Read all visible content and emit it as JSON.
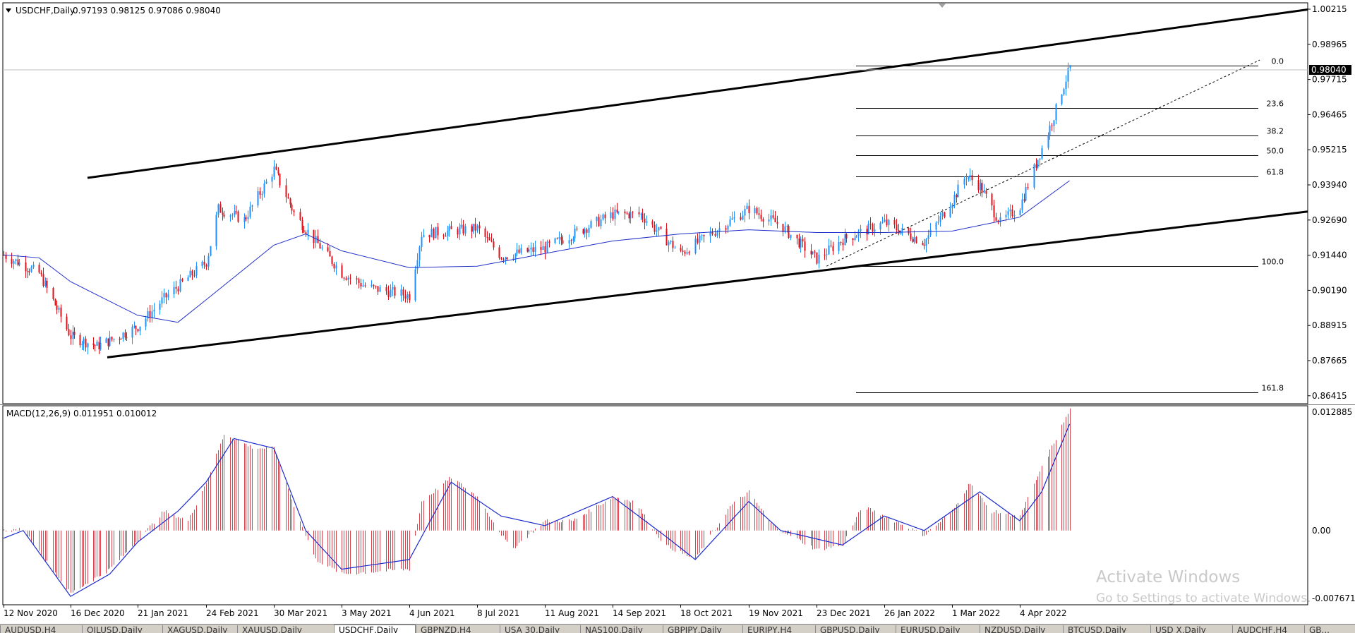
{
  "header": {
    "symbol": "USDCHF,Daily",
    "ohlc": "0.97193 0.98125 0.97086 0.98040"
  },
  "price_axis": {
    "labels": [
      "1.00215",
      "0.98965",
      "0.97715",
      "0.96465",
      "0.95215",
      "0.93940",
      "0.92690",
      "0.91440",
      "0.90190",
      "0.88915",
      "0.87665",
      "0.86415"
    ],
    "current_price": "0.98040"
  },
  "fibonacci": {
    "levels": [
      "0.0",
      "23.6",
      "38.2",
      "50.0",
      "61.8",
      "100.0",
      "161.8"
    ]
  },
  "macd": {
    "title": "MACD(12,26,9) 0.011951 0.010012",
    "axis_labels": [
      "0.012885",
      "0.00",
      "-0.007671"
    ]
  },
  "time_axis": {
    "labels": [
      "12 Nov 2020",
      "16 Dec 2020",
      "21 Jan 2021",
      "24 Feb 2021",
      "30 Mar 2021",
      "3 May 2021",
      "4 Jun 2021",
      "8 Jul 2021",
      "11 Aug 2021",
      "14 Sep 2021",
      "18 Oct 2021",
      "19 Nov 2021",
      "23 Dec 2021",
      "26 Jan 2022",
      "1 Mar 2022",
      "4 Apr 2022"
    ]
  },
  "watermark": {
    "line1": "Activate Windows",
    "line2": "Go to Settings to activate Windows."
  },
  "tabs": [
    "AUDUSD,H4",
    "OILUSD,Daily",
    "XAGUSD,Daily",
    "XAUUSD,Daily",
    "USDCHF,Daily",
    "GBPNZD,H4",
    "USA 30,Daily",
    "NAS100,Daily",
    "GBPJPY,Daily",
    "EURJPY,H4",
    "GBPUSD,Daily",
    "EURUSD,Daily",
    "NZDUSD,Daily",
    "BTCUSD,Daily",
    "USD X,Daily",
    "AUDCHF,H4",
    "GB..."
  ],
  "active_tab": "USDCHF,Daily",
  "colors": {
    "bull": "#1e90ff",
    "bear": "#e0101a",
    "ma": "#2030c8",
    "histogram": "#d8454f",
    "signal": "#1a2ad0",
    "trend": "#000000"
  },
  "chart_data": {
    "type": "candlestick",
    "symbol": "USDCHF",
    "timeframe": "Daily",
    "ylim": [
      0.8605,
      1.0034
    ],
    "close_path": [
      [
        "12 Nov 2020",
        0.9135
      ],
      [
        "30 Nov 2020",
        0.907
      ],
      [
        "16 Dec 2020",
        0.8845
      ],
      [
        "30 Dec 2020",
        0.881
      ],
      [
        "6 Jan 2021",
        0.883
      ],
      [
        "21 Jan 2021",
        0.888
      ],
      [
        "3 Feb 2021",
        0.898
      ],
      [
        "24 Feb 2021",
        0.911
      ],
      [
        "2 Mar 2021",
        0.93
      ],
      [
        "15 Mar 2021",
        0.926
      ],
      [
        "30 Mar 2021",
        0.944
      ],
      [
        "10 Apr 2021",
        0.927
      ],
      [
        "3 May 2021",
        0.907
      ],
      [
        "15 May 2021",
        0.902
      ],
      [
        "4 Jun 2021",
        0.899
      ],
      [
        "10 Jun 2021",
        0.921
      ],
      [
        "8 Jul 2021",
        0.923
      ],
      [
        "20 Jul 2021",
        0.913
      ],
      [
        "11 Aug 2021",
        0.916
      ],
      [
        "14 Sep 2021",
        0.928
      ],
      [
        "28 Sep 2021",
        0.928
      ],
      [
        "18 Oct 2021",
        0.914
      ],
      [
        "19 Nov 2021",
        0.93
      ],
      [
        "5 Dec 2021",
        0.924
      ],
      [
        "23 Dec 2021",
        0.912
      ],
      [
        "5 Jan 2022",
        0.919
      ],
      [
        "26 Jan 2022",
        0.925
      ],
      [
        "15 Feb 2022",
        0.918
      ],
      [
        "1 Mar 2022",
        0.933
      ],
      [
        "8 Mar 2022",
        0.942
      ],
      [
        "15 Mar 2022",
        0.938
      ],
      [
        "25 Mar 2022",
        0.925
      ],
      [
        "4 Apr 2022",
        0.931
      ],
      [
        "12 Apr 2022",
        0.946
      ],
      [
        "20 Apr 2022",
        0.961
      ],
      [
        "25 Apr 2022",
        0.972
      ],
      [
        "29 Apr 2022",
        0.9804
      ]
    ],
    "ma_path": [
      [
        "12 Nov 2020",
        0.9135
      ],
      [
        "30 Nov 2020",
        0.9125
      ],
      [
        "16 Dec 2020",
        0.904
      ],
      [
        "21 Jan 2021",
        0.892
      ],
      [
        "10 Feb 2021",
        0.8895
      ],
      [
        "24 Feb 2021",
        0.8975
      ],
      [
        "30 Mar 2021",
        0.917
      ],
      [
        "15 Apr 2021",
        0.921
      ],
      [
        "3 May 2021",
        0.915
      ],
      [
        "4 Jun 2021",
        0.909
      ],
      [
        "8 Jul 2021",
        0.9095
      ],
      [
        "11 Aug 2021",
        0.914
      ],
      [
        "14 Sep 2021",
        0.9185
      ],
      [
        "18 Oct 2021",
        0.921
      ],
      [
        "19 Nov 2021",
        0.9225
      ],
      [
        "23 Dec 2021",
        0.9215
      ],
      [
        "26 Jan 2022",
        0.9215
      ],
      [
        "1 Mar 2022",
        0.922
      ],
      [
        "4 Apr 2022",
        0.927
      ],
      [
        "29 Apr 2022",
        0.94
      ]
    ],
    "channel_upper": [
      [
        "16 Dec 2020",
        0.941
      ],
      [
        "end",
        1.001
      ]
    ],
    "channel_lower": [
      [
        "16 Dec 2020",
        0.877
      ],
      [
        "end",
        0.929
      ]
    ],
    "fib_dashed": [
      [
        "28 Dec 2021",
        0.9095
      ],
      [
        "end",
        0.983
      ]
    ],
    "fib_prices": {
      "0.0": 0.981,
      "23.6": 0.966,
      "38.2": 0.956,
      "50.0": 0.949,
      "61.8": 0.9415,
      "100.0": 0.9095,
      "161.8": 0.8645
    },
    "macd_ylim": [
      -0.007671,
      0.012885
    ],
    "macd_histogram_path": [
      [
        "12 Nov 2020",
        0.0
      ],
      [
        "22 Nov 2020",
        0.0001
      ],
      [
        "1 Dec 2020",
        -0.0025
      ],
      [
        "16 Dec 2020",
        -0.0065
      ],
      [
        "6 Jan 2021",
        -0.004
      ],
      [
        "21 Jan 2021",
        -0.001
      ],
      [
        "3 Feb 2021",
        0.002
      ],
      [
        "15 Feb 2021",
        0.001
      ],
      [
        "24 Feb 2021",
        0.005
      ],
      [
        "5 Mar 2021",
        0.01
      ],
      [
        "20 Mar 2021",
        0.0085
      ],
      [
        "30 Mar 2021",
        0.0085
      ],
      [
        "10 Apr 2021",
        0.002
      ],
      [
        "20 Apr 2021",
        -0.003
      ],
      [
        "3 May 2021",
        -0.0045
      ],
      [
        "4 Jun 2021",
        -0.004
      ],
      [
        "10 Jun 2021",
        0.003
      ],
      [
        "25 Jun 2021",
        0.0055
      ],
      [
        "8 Jul 2021",
        0.0035
      ],
      [
        "25 Jul 2021",
        -0.002
      ],
      [
        "11 Aug 2021",
        0.001
      ],
      [
        "25 Aug 2021",
        0.001
      ],
      [
        "14 Sep 2021",
        0.0035
      ],
      [
        "25 Sep 2021",
        0.003
      ],
      [
        "10 Oct 2021",
        -0.0015
      ],
      [
        "25 Oct 2021",
        -0.003
      ],
      [
        "10 Nov 2021",
        0.0025
      ],
      [
        "19 Nov 2021",
        0.004
      ],
      [
        "1 Dec 2021",
        0.0005
      ],
      [
        "23 Dec 2021",
        -0.002
      ],
      [
        "5 Jan 2022",
        -0.0015
      ],
      [
        "15 Jan 2022",
        0.0025
      ],
      [
        "26 Jan 2022",
        0.0015
      ],
      [
        "15 Feb 2022",
        -0.0005
      ],
      [
        "1 Mar 2022",
        0.002
      ],
      [
        "10 Mar 2022",
        0.005
      ],
      [
        "20 Mar 2022",
        0.002
      ],
      [
        "4 Apr 2022",
        0.0015
      ],
      [
        "15 Apr 2022",
        0.0065
      ],
      [
        "29 Apr 2022",
        0.0125
      ]
    ],
    "macd_signal_path": [
      [
        "12 Nov 2020",
        -0.0008
      ],
      [
        "22 Nov 2020",
        0.0
      ],
      [
        "16 Dec 2020",
        -0.0068
      ],
      [
        "6 Jan 2021",
        -0.0045
      ],
      [
        "21 Jan 2021",
        -0.0012
      ],
      [
        "10 Feb 2021",
        0.002
      ],
      [
        "24 Feb 2021",
        0.005
      ],
      [
        "10 Mar 2021",
        0.0095
      ],
      [
        "30 Mar 2021",
        0.0085
      ],
      [
        "15 Apr 2021",
        0.0
      ],
      [
        "3 May 2021",
        -0.004
      ],
      [
        "4 Jun 2021",
        -0.003
      ],
      [
        "25 Jun 2021",
        0.005
      ],
      [
        "20 Jul 2021",
        0.0015
      ],
      [
        "11 Aug 2021",
        0.0005
      ],
      [
        "14 Sep 2021",
        0.0035
      ],
      [
        "10 Oct 2021",
        -0.0005
      ],
      [
        "25 Oct 2021",
        -0.003
      ],
      [
        "19 Nov 2021",
        0.003
      ],
      [
        "5 Dec 2021",
        0.0
      ],
      [
        "5 Jan 2022",
        -0.0015
      ],
      [
        "26 Jan 2022",
        0.0015
      ],
      [
        "15 Feb 2022",
        0.0
      ],
      [
        "15 Mar 2022",
        0.004
      ],
      [
        "4 Apr 2022",
        0.001
      ],
      [
        "15 Apr 2022",
        0.004
      ],
      [
        "29 Apr 2022",
        0.011
      ]
    ]
  }
}
